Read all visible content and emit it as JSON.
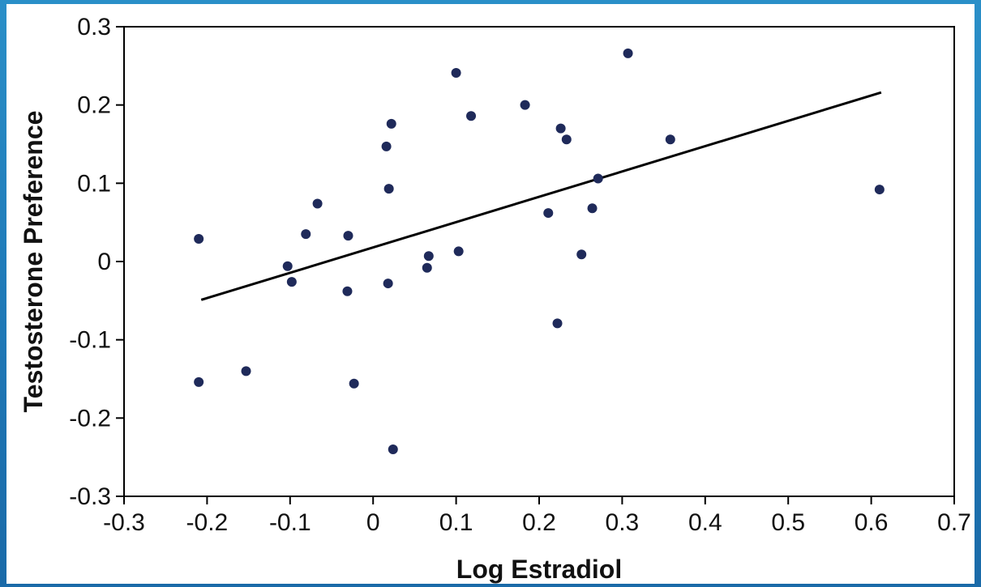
{
  "chart_data": {
    "type": "scatter",
    "xlabel": "Log Estradiol",
    "ylabel": "Testosterone Preference",
    "xlim": [
      -0.3,
      0.7
    ],
    "ylim": [
      -0.3,
      0.3
    ],
    "x_ticks": [
      "-0.3",
      "-0.2",
      "-0.1",
      "0",
      "0.1",
      "0.2",
      "0.3",
      "0.4",
      "0.5",
      "0.6",
      "0.7"
    ],
    "y_ticks": [
      "0.3",
      "0.2",
      "0.1",
      "0",
      "-0.1",
      "-0.2",
      "-0.3"
    ],
    "grid": false,
    "colors": {
      "points": "#1f2a5a",
      "trendline": "#000000",
      "axis": "#000000"
    },
    "points": [
      {
        "x": -0.21,
        "y": 0.029
      },
      {
        "x": -0.21,
        "y": -0.154
      },
      {
        "x": -0.153,
        "y": -0.14
      },
      {
        "x": -0.103,
        "y": -0.006
      },
      {
        "x": -0.098,
        "y": -0.026
      },
      {
        "x": -0.081,
        "y": 0.035
      },
      {
        "x": -0.067,
        "y": 0.074
      },
      {
        "x": -0.03,
        "y": 0.033
      },
      {
        "x": -0.031,
        "y": -0.038
      },
      {
        "x": -0.023,
        "y": -0.156
      },
      {
        "x": 0.016,
        "y": 0.147
      },
      {
        "x": 0.018,
        "y": -0.028
      },
      {
        "x": 0.019,
        "y": 0.093
      },
      {
        "x": 0.022,
        "y": 0.176
      },
      {
        "x": 0.024,
        "y": -0.24
      },
      {
        "x": 0.065,
        "y": -0.008
      },
      {
        "x": 0.067,
        "y": 0.007
      },
      {
        "x": 0.1,
        "y": 0.241
      },
      {
        "x": 0.103,
        "y": 0.013
      },
      {
        "x": 0.118,
        "y": 0.186
      },
      {
        "x": 0.183,
        "y": 0.2
      },
      {
        "x": 0.211,
        "y": 0.062
      },
      {
        "x": 0.222,
        "y": -0.079
      },
      {
        "x": 0.226,
        "y": 0.17
      },
      {
        "x": 0.233,
        "y": 0.156
      },
      {
        "x": 0.251,
        "y": 0.009
      },
      {
        "x": 0.264,
        "y": 0.068
      },
      {
        "x": 0.271,
        "y": 0.106
      },
      {
        "x": 0.307,
        "y": 0.266
      },
      {
        "x": 0.358,
        "y": 0.156
      },
      {
        "x": 0.61,
        "y": 0.092
      }
    ],
    "trendline": {
      "x": [
        -0.207,
        0.612
      ],
      "y": [
        -0.049,
        0.216
      ]
    }
  }
}
